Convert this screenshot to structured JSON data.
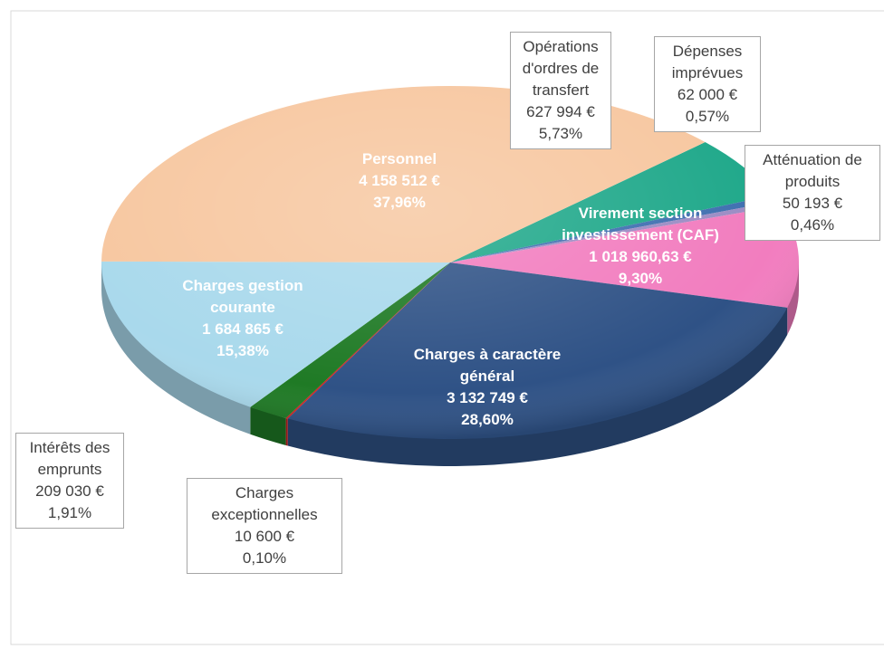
{
  "chart_data": {
    "type": "pie",
    "categories": [
      "Opérations d'ordres de transfert",
      "Dépenses imprévues",
      "Atténuation de produits",
      "Virement section investissement (CAF)",
      "Charges à caractère général",
      "Charges exceptionnelles",
      "Intérêts des emprunts",
      "Charges gestion courante",
      "Personnel"
    ],
    "values": [
      627994,
      62000,
      50193,
      1018960.63,
      3132749,
      10600,
      209030,
      1684865,
      4158512
    ],
    "value_labels": [
      "627 994 €",
      "62 000 €",
      "50 193 €",
      "1 018 960,63 €",
      "3 132 749 €",
      "10 600 €",
      "209 030 €",
      "1 684 865 €",
      "4 158 512 €"
    ],
    "percentages": [
      5.73,
      0.57,
      0.46,
      9.3,
      28.6,
      0.1,
      1.91,
      15.38,
      37.96
    ],
    "percentage_labels": [
      "5,73%",
      "0,57%",
      "0,46%",
      "9,30%",
      "28,60%",
      "0,10%",
      "1,91%",
      "15,38%",
      "37,96%"
    ],
    "colors": [
      "#1fa88a",
      "#3f6fb0",
      "#9b8cc4",
      "#f27dbf",
      "#2f5286",
      "#d42020",
      "#1f7a25",
      "#a9d9ec",
      "#f7c7a0"
    ]
  }
}
